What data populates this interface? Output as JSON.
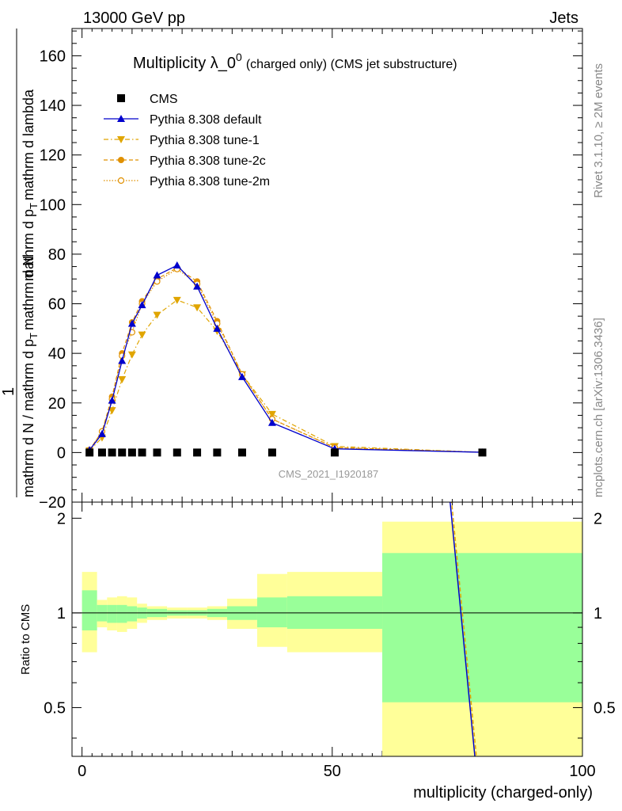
{
  "header": {
    "left": "13000 GeV pp",
    "right": "Jets"
  },
  "side": {
    "rivet": "Rivet 3.1.10, ≥ 2M events",
    "mcplots": "mcplots.cern.ch [arXiv:1306.3436]"
  },
  "chart_data": {
    "type": "line",
    "title": "Multiplicity λ_0",
    "title_sup": "0",
    "title_rest": "(charged only) (CMS jet substructure)",
    "watermark": "CMS_2021_I1920187",
    "ylabel": {
      "numer": "1",
      "denom": "mathrm d N / mathrm d p",
      "sub": "T",
      "rest": "mathrm d N",
      "rest2": "mathrm d p",
      "rest3": "mathrm d lambda"
    },
    "xlabel": "multiplicity (charged-only)",
    "ratio_ylabel": "Ratio to CMS",
    "xlim": [
      -2,
      100
    ],
    "ylim": [
      -20,
      171
    ],
    "ratio_ylim": [
      0.35,
      2.25
    ],
    "x_ticks": [
      0,
      50,
      100
    ],
    "y_ticks": [
      -20,
      0,
      20,
      40,
      60,
      80,
      100,
      120,
      140,
      160
    ],
    "ratio_ticks": [
      0.5,
      1,
      2
    ],
    "legend": [
      {
        "label": "CMS",
        "color": "#000000",
        "marker": "square",
        "dash": ""
      },
      {
        "label": "Pythia 8.308 default",
        "color": "#0000cc",
        "marker": "triangle-up",
        "dash": ""
      },
      {
        "label": "Pythia 8.308 tune-1",
        "color": "#e0a500",
        "marker": "triangle-down",
        "dash": "6,3,1.5,3"
      },
      {
        "label": "Pythia 8.308 tune-2c",
        "color": "#e09000",
        "marker": "circle",
        "dash": "5,3"
      },
      {
        "label": "Pythia 8.308 tune-2m",
        "color": "#e09000",
        "marker": "circle-open",
        "dash": "1.5,2"
      }
    ],
    "bins": [
      [
        0,
        3
      ],
      [
        3,
        5
      ],
      [
        5,
        7
      ],
      [
        7,
        9
      ],
      [
        9,
        11
      ],
      [
        11,
        13
      ],
      [
        13,
        17
      ],
      [
        17,
        21
      ],
      [
        21,
        25
      ],
      [
        25,
        29
      ],
      [
        29,
        35
      ],
      [
        35,
        41
      ],
      [
        41,
        60
      ],
      [
        60,
        100
      ]
    ],
    "x": [
      1.5,
      4,
      6,
      8,
      10,
      12,
      15,
      19,
      23,
      27,
      32,
      38,
      50.5,
      80
    ],
    "series": [
      {
        "name": "CMS",
        "values": [
          0,
          0,
          0,
          0,
          0,
          0,
          0,
          0,
          0,
          0,
          0,
          0,
          0,
          0
        ]
      },
      {
        "name": "Pythia 8.308 default",
        "values": [
          1,
          7.5,
          21,
          37,
          52,
          59.5,
          71.5,
          75.5,
          67,
          50,
          30.5,
          12,
          1.5,
          0.1
        ]
      },
      {
        "name": "Pythia 8.308 tune-1",
        "values": [
          0.8,
          6,
          17,
          29.5,
          39.5,
          47.5,
          55.5,
          61.5,
          58.5,
          49,
          31.5,
          15.5,
          2.5,
          0.1
        ]
      },
      {
        "name": "Pythia 8.308 tune-2c",
        "values": [
          1,
          8.5,
          22.5,
          40,
          52.5,
          61,
          70,
          74.5,
          69,
          53,
          31.5,
          13.5,
          2,
          0.1
        ]
      },
      {
        "name": "Pythia 8.308 tune-2m",
        "values": [
          1,
          8.5,
          21.5,
          39,
          48.5,
          60,
          69,
          74,
          68,
          52,
          31.5,
          13.5,
          2,
          0.1
        ]
      }
    ],
    "ratio_bands": {
      "inner": [
        [
          0.88,
          1.18
        ],
        [
          0.94,
          1.06
        ],
        [
          0.93,
          1.06
        ],
        [
          0.93,
          1.06
        ],
        [
          0.94,
          1.05
        ],
        [
          0.96,
          1.04
        ],
        [
          0.97,
          1.03
        ],
        [
          0.98,
          1.02
        ],
        [
          0.98,
          1.02
        ],
        [
          0.97,
          1.03
        ],
        [
          0.95,
          1.05
        ],
        [
          0.9,
          1.12
        ],
        [
          0.89,
          1.13
        ],
        [
          0.52,
          1.55
        ]
      ],
      "outer": [
        [
          0.75,
          1.35
        ],
        [
          0.9,
          1.1
        ],
        [
          0.88,
          1.12
        ],
        [
          0.87,
          1.13
        ],
        [
          0.89,
          1.12
        ],
        [
          0.93,
          1.07
        ],
        [
          0.95,
          1.05
        ],
        [
          0.96,
          1.04
        ],
        [
          0.96,
          1.04
        ],
        [
          0.95,
          1.05
        ],
        [
          0.89,
          1.11
        ],
        [
          0.78,
          1.33
        ],
        [
          0.75,
          1.35
        ],
        [
          0.35,
          1.95
        ]
      ]
    },
    "ratio_lines": [
      {
        "color": "#0000cc",
        "dash": "",
        "x": [
          73.5,
          78.5
        ],
        "y": [
          2.3,
          0.3
        ]
      },
      {
        "color": "#e0a500",
        "dash": "5,3",
        "x": [
          73.8,
          78.8
        ],
        "y": [
          2.3,
          0.3
        ]
      }
    ],
    "colors": {
      "band_inner": "#99ff99",
      "band_outer": "#ffff99"
    }
  }
}
